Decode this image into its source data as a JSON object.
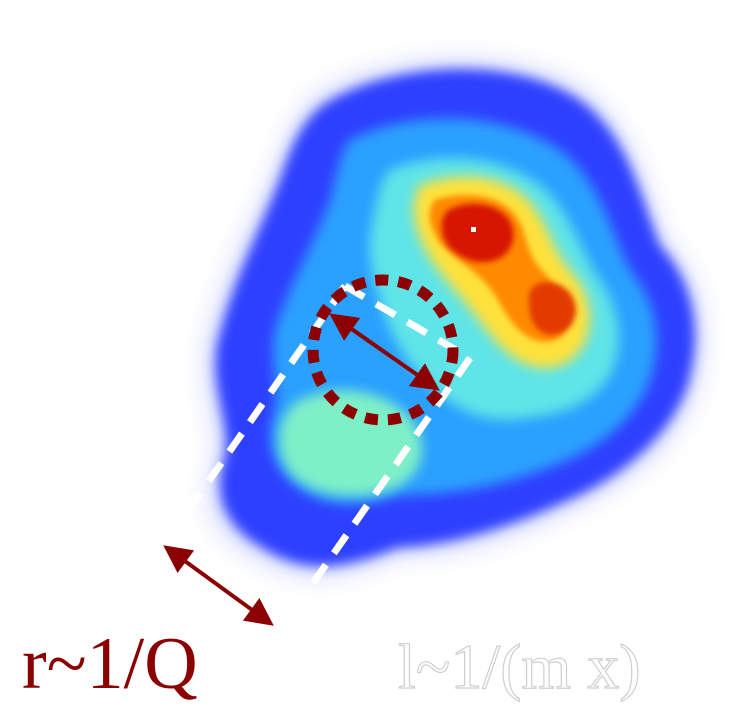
{
  "labels": {
    "transverse_size": "r~1/Q",
    "longitudinal_size": "l~1/(m x)"
  },
  "colors": {
    "accent": "#8b0000",
    "outline_dash": "#ffffff",
    "hot_core": "#d61800",
    "warm": "#ff8a00",
    "mid": "#4fd6ff",
    "cool": "#1f3dff",
    "edge": "#b9c3ff"
  }
}
